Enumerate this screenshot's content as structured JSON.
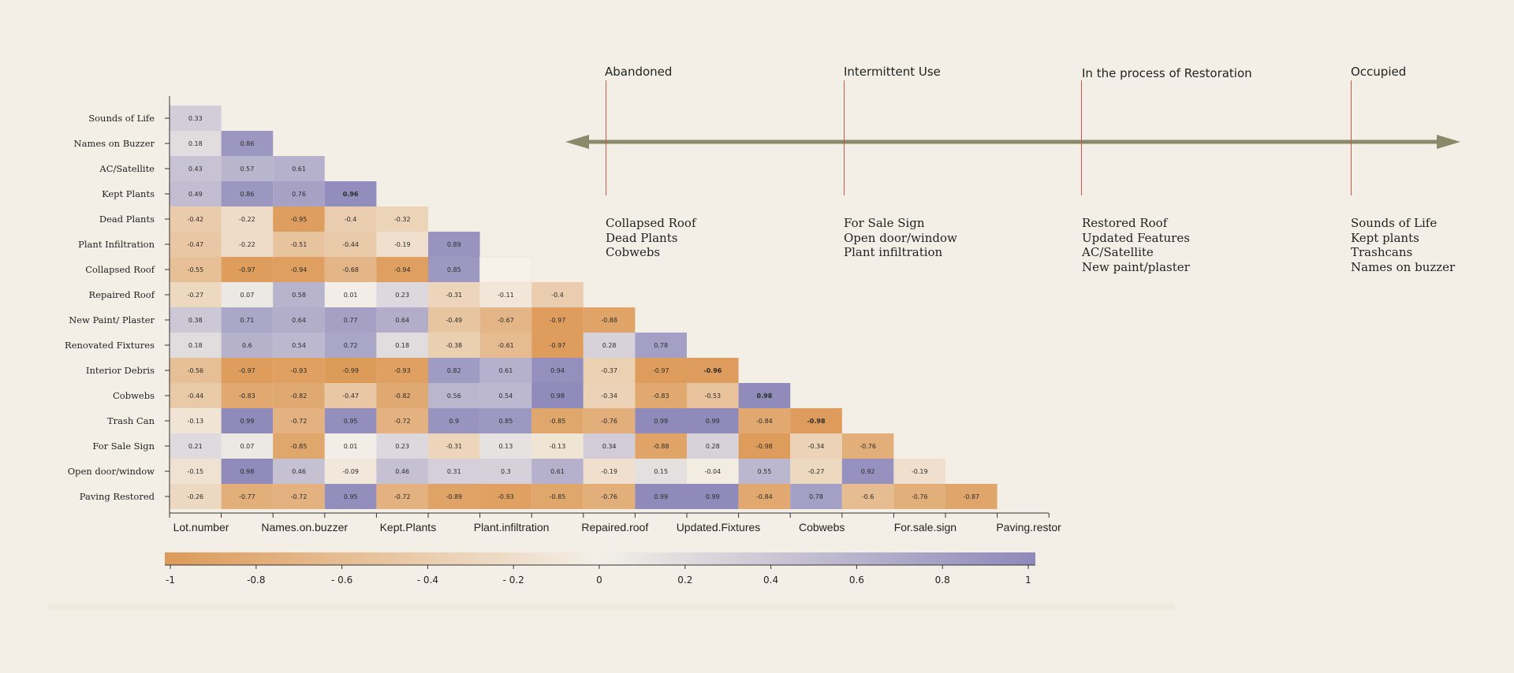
{
  "chart_data": {
    "type": "heatmap",
    "title": "",
    "row_labels": [
      "Sounds of Life",
      "Names on Buzzer",
      "AC/Satellite",
      "Kept Plants",
      "Dead Plants",
      "Plant Infiltration",
      "Collapsed Roof",
      "Repaired Roof",
      "New Paint/ Plaster",
      "Renovated  Fixtures",
      "Interior Debris",
      "Cobwebs",
      "Trash Can",
      "For Sale Sign",
      "Open door/window",
      "Paving Restored"
    ],
    "x_tick_labels": [
      "Lot.number",
      "Names.on.buzzer",
      "Kept.Plants",
      "Plant.infiltration",
      "Repaired.roof",
      "Updated.Fixtures",
      "Cobwebs",
      "For.sale.sign",
      "Paving.restor"
    ],
    "values": [
      [
        "0.33"
      ],
      [
        "0.18",
        "0.86"
      ],
      [
        "0.43",
        "0.57",
        "0.61"
      ],
      [
        "0.49",
        "0.86",
        "0.76",
        "0.96"
      ],
      [
        "-0.42",
        "-0.22",
        "-0.95",
        "-0.4",
        "-0.32"
      ],
      [
        "-0.47",
        "-0.22",
        "-0.51",
        "-0.44",
        "-0.19",
        "0.89"
      ],
      [
        "-0.55",
        "-0.97",
        "-0.94",
        "-0.68",
        "-0.94",
        "0.85",
        ""
      ],
      [
        "-0.27",
        "0.07",
        "0.58",
        "0.01",
        "0.23",
        "-0.31",
        "-0.11",
        "-0.4"
      ],
      [
        "0.38",
        "0.71",
        "0.64",
        "0.77",
        "0.64",
        "-0.49",
        "-0.67",
        "-0.97",
        "-0.88"
      ],
      [
        "0.18",
        "0.6",
        "0.54",
        "0.72",
        "0.18",
        "-0.38",
        "-0.61",
        "-0.97",
        "0.28",
        "0.78"
      ],
      [
        "-0.56",
        "-0.97",
        "-0.93",
        "-0.99",
        "-0.93",
        "0.82",
        "0.61",
        "0.94",
        "-0.37",
        "-0.97",
        "-0.96"
      ],
      [
        "-0.44",
        "-0.83",
        "-0.82",
        "-0.47",
        "-0.82",
        "0.56",
        "0.54",
        "0.98",
        "-0.34",
        "-0.83",
        "-0.53",
        "0.98"
      ],
      [
        "-0.13",
        "0.99",
        "-0.72",
        "0.95",
        "-0.72",
        "0.9",
        "0.85",
        "-0.85",
        "-0.76",
        "0.99",
        "0.99",
        "-0.84",
        "-0.98"
      ],
      [
        "0.21",
        "0.07",
        "-0.85",
        "0.01",
        "0.23",
        "-0.31",
        "0.13",
        "-0.13",
        "0.34",
        "-0.88",
        "0.28",
        "-0.98",
        "-0.34",
        "-0.76"
      ],
      [
        "-0.15",
        "0.98",
        "0.46",
        "-0.09",
        "0.46",
        "0.31",
        "0.3",
        "0.61",
        "-0.19",
        "0.15",
        "-0.04",
        "0.55",
        "-0.27",
        "0.92",
        "-0.19"
      ],
      [
        "-0.26",
        "-0.77",
        "-0.72",
        "0.95",
        "-0.72",
        "-0.89",
        "-0.93",
        "-0.85",
        "-0.76",
        "0.99",
        "0.99",
        "-0.84",
        "0.78",
        "-0.6",
        "-0.76",
        "-0.87"
      ]
    ],
    "color_scale": {
      "min": -1,
      "max": 1,
      "neg_color": "#dd9a58",
      "zero_color": "#f3efe7",
      "pos_color": "#8e89ba",
      "tick_values": [
        -1,
        -0.8,
        -0.6,
        -0.4,
        -0.2,
        0,
        0.2,
        0.4,
        0.6,
        0.8,
        1
      ],
      "tick_labels": [
        "-1",
        "-0.8",
        "- 0.6",
        "- 0.4",
        "- 0.2",
        "0",
        "0.2",
        "0.4",
        "0.6",
        "0.8",
        "1"
      ]
    },
    "grid": false
  },
  "timeline": {
    "stages": [
      {
        "title": "Abandoned",
        "items": [
          "Collapsed Roof",
          "Dead Plants",
          "Cobwebs"
        ]
      },
      {
        "title": "Intermittent Use",
        "items": [
          "For Sale Sign",
          "Open door/window",
          "Plant infiltration"
        ]
      },
      {
        "title": "In the process of Restoration",
        "items": [
          "Restored Roof",
          "Updated Features",
          "AC/Satellite",
          "New paint/plaster"
        ]
      },
      {
        "title": "Occupied",
        "items": [
          "Sounds of Life",
          "Kept plants",
          "Trashcans",
          "Names on buzzer"
        ]
      }
    ],
    "arrow_color": "#8a8a6a",
    "tick_color": "#c9574a"
  }
}
